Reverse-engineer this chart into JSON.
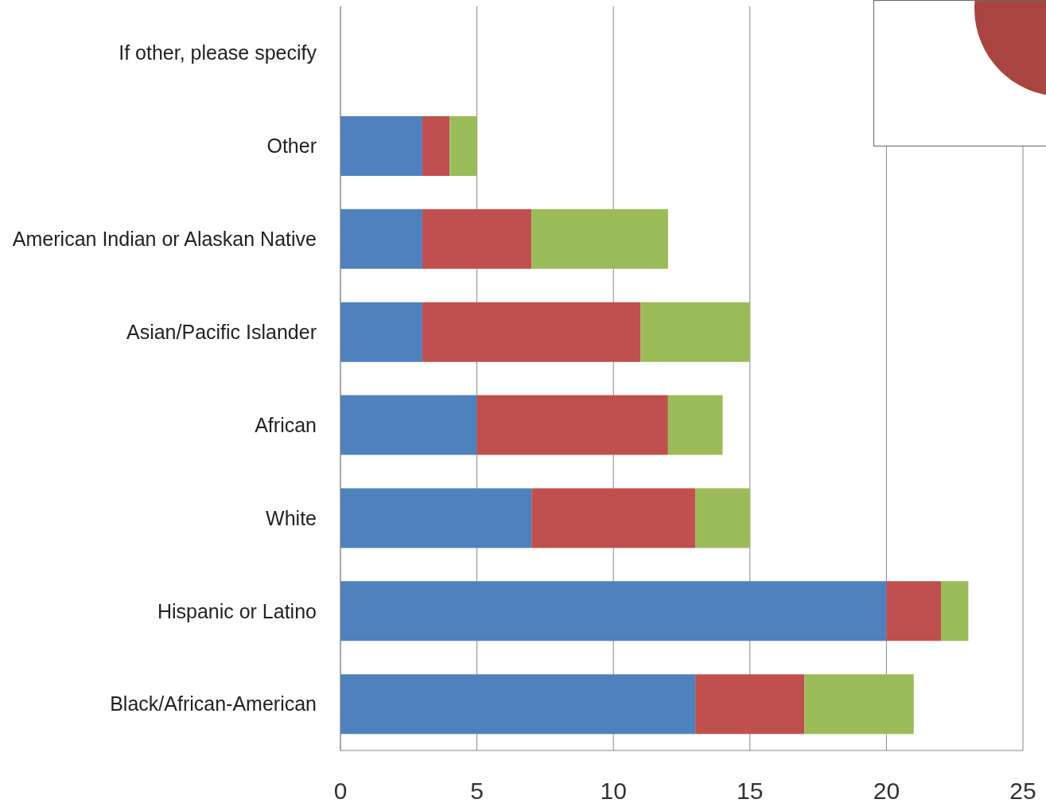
{
  "chart_data": {
    "type": "bar",
    "orientation": "horizontal",
    "stacked": true,
    "categories": [
      "If other, please specify",
      "Other",
      "American Indian or Alaskan Native",
      "Asian/Pacific Islander",
      "African",
      "White",
      "Hispanic or Latino",
      "Black/African-American"
    ],
    "series": [
      {
        "color": "#4f81bd",
        "values": [
          null,
          3,
          3,
          3,
          5,
          7,
          20,
          13
        ]
      },
      {
        "color": "#c0504d",
        "values": [
          null,
          1,
          4,
          8,
          7,
          6,
          2,
          4
        ]
      },
      {
        "color": "#9bbb59",
        "values": [
          null,
          1,
          5,
          4,
          2,
          2,
          1,
          4
        ]
      }
    ],
    "xlim": [
      0,
      25
    ],
    "xticks": [
      0,
      5,
      10,
      15,
      20,
      25
    ],
    "grid": "x"
  }
}
